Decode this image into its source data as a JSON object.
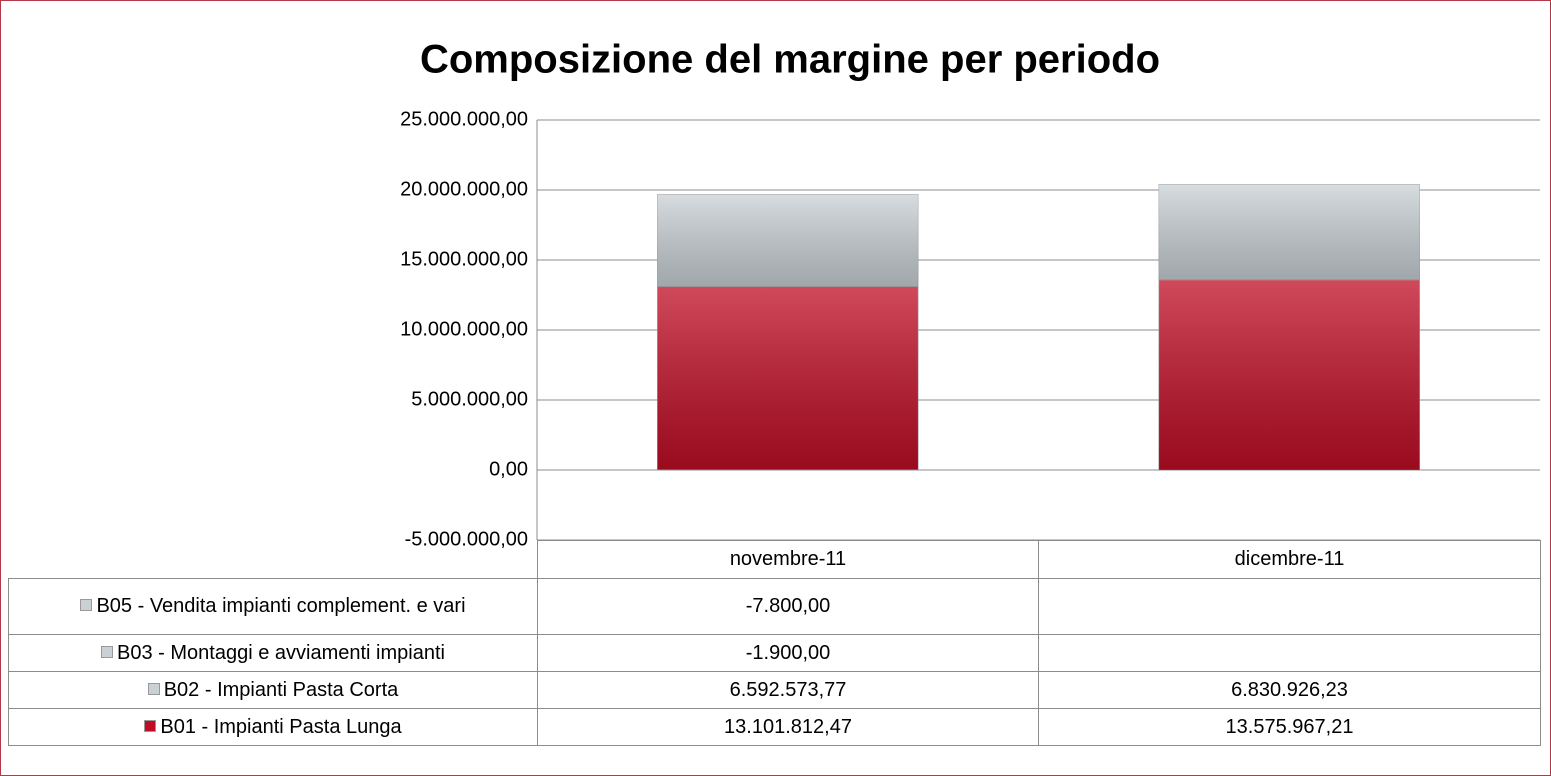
{
  "chart_data": {
    "type": "bar",
    "stacked": true,
    "title": "Composizione del margine per periodo",
    "categories": [
      "novembre-11",
      "dicembre-11"
    ],
    "series": [
      {
        "name": "B05 - Vendita impianti complement. e vari",
        "color": "#c9d1d5",
        "values": [
          -7800,
          null
        ],
        "value_labels": [
          "-7.800,00",
          null
        ]
      },
      {
        "name": "B03 - Montaggi e avviamenti impianti",
        "color": "#c9d1d5",
        "values": [
          -1900,
          null
        ],
        "value_labels": [
          "-1.900,00",
          null
        ]
      },
      {
        "name": "B02 - Impianti Pasta Corta",
        "color": "#c9d1d5",
        "values": [
          6592573.77,
          6830926.23
        ],
        "value_labels": [
          "6.592.573,77",
          "6.830.926,23"
        ]
      },
      {
        "name": "B01 - Impianti Pasta Lunga",
        "color": "#c00d25",
        "values": [
          13101812.47,
          13575967.21
        ],
        "value_labels": [
          "13.101.812,47",
          "13.575.967,21"
        ]
      }
    ],
    "ylim": [
      -5000000,
      25000000
    ],
    "yticks": [
      {
        "value": -5000000,
        "label": "-5.000.000,00"
      },
      {
        "value": 0,
        "label": "0,00"
      },
      {
        "value": 5000000,
        "label": "5.000.000,00"
      },
      {
        "value": 10000000,
        "label": "10.000.000,00"
      },
      {
        "value": 15000000,
        "label": "15.000.000,00"
      },
      {
        "value": 20000000,
        "label": "20.000.000,00"
      },
      {
        "value": 25000000,
        "label": "25.000.000,00"
      }
    ],
    "grid": true
  }
}
